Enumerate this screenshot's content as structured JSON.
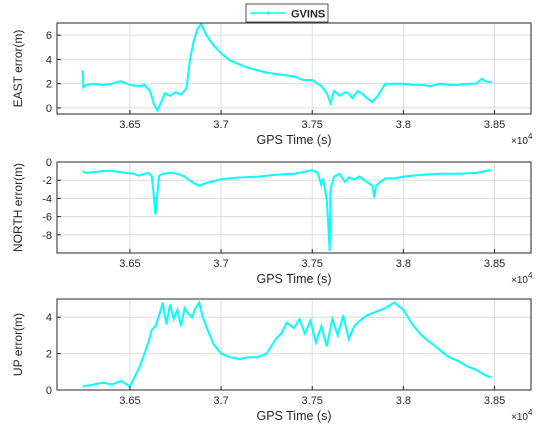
{
  "legend": {
    "label": "GVINS",
    "color": "#00ffff"
  },
  "chart_data": [
    {
      "type": "line",
      "xlabel": "GPS Time (s)",
      "ylabel": "EAST error(m)",
      "x_exponent_label": "×10",
      "x_exponent_power": "4",
      "xlim": [
        3.61,
        3.87
      ],
      "ylim": [
        -0.5,
        7
      ],
      "xticks": [
        3.65,
        3.7,
        3.75,
        3.8,
        3.85
      ],
      "xtick_labels": [
        "3.65",
        "3.7",
        "3.75",
        "3.8",
        "3.85"
      ],
      "yticks": [
        0,
        2,
        4,
        6
      ],
      "ytick_labels": [
        "0",
        "2",
        "4",
        "6"
      ],
      "series": [
        {
          "name": "GVINS",
          "color": "#00ffff",
          "x": [
            3.624,
            3.6245,
            3.626,
            3.63,
            3.635,
            3.64,
            3.645,
            3.65,
            3.655,
            3.658,
            3.661,
            3.663,
            3.665,
            3.667,
            3.669,
            3.672,
            3.675,
            3.678,
            3.681,
            3.683,
            3.685,
            3.687,
            3.689,
            3.692,
            3.695,
            3.7,
            3.705,
            3.71,
            3.715,
            3.72,
            3.725,
            3.73,
            3.735,
            3.74,
            3.745,
            3.75,
            3.753,
            3.755,
            3.758,
            3.76,
            3.762,
            3.765,
            3.768,
            3.77,
            3.772,
            3.775,
            3.778,
            3.78,
            3.783,
            3.786,
            3.79,
            3.795,
            3.8,
            3.805,
            3.81,
            3.815,
            3.82,
            3.825,
            3.83,
            3.835,
            3.84,
            3.843,
            3.845,
            3.848
          ],
          "y": [
            3.1,
            1.7,
            1.9,
            2.0,
            1.9,
            2.0,
            2.2,
            1.9,
            1.8,
            1.9,
            1.4,
            0.4,
            -0.2,
            0.4,
            1.2,
            1.0,
            1.3,
            1.1,
            1.6,
            4.0,
            5.5,
            6.5,
            6.9,
            6.0,
            5.3,
            4.5,
            3.9,
            3.6,
            3.3,
            3.1,
            2.9,
            2.8,
            2.7,
            2.6,
            2.3,
            2.3,
            2.0,
            1.8,
            1.2,
            0.4,
            1.4,
            1.0,
            1.3,
            1.2,
            0.8,
            1.4,
            1.1,
            0.8,
            0.5,
            1.0,
            2.0,
            2.0,
            2.0,
            1.9,
            1.9,
            1.8,
            2.0,
            1.9,
            1.9,
            2.0,
            2.0,
            2.4,
            2.2,
            2.1
          ]
        }
      ]
    },
    {
      "type": "line",
      "xlabel": "GPS Time (s)",
      "ylabel": "NORTH error(m)",
      "x_exponent_label": "×10",
      "x_exponent_power": "4",
      "xlim": [
        3.61,
        3.87
      ],
      "ylim": [
        -10,
        0
      ],
      "xticks": [
        3.65,
        3.7,
        3.75,
        3.8,
        3.85
      ],
      "xtick_labels": [
        "3.65",
        "3.7",
        "3.75",
        "3.8",
        "3.85"
      ],
      "yticks": [
        -8,
        -6,
        -4,
        -2,
        0
      ],
      "ytick_labels": [
        "-8",
        "-6",
        "-4",
        "-2",
        "0"
      ],
      "series": [
        {
          "name": "GVINS",
          "color": "#00ffff",
          "x": [
            3.624,
            3.626,
            3.63,
            3.635,
            3.64,
            3.645,
            3.648,
            3.652,
            3.655,
            3.658,
            3.66,
            3.662,
            3.663,
            3.664,
            3.666,
            3.668,
            3.672,
            3.676,
            3.68,
            3.684,
            3.688,
            3.692,
            3.696,
            3.7,
            3.71,
            3.72,
            3.73,
            3.74,
            3.745,
            3.75,
            3.753,
            3.755,
            3.756,
            3.758,
            3.759,
            3.7595,
            3.76,
            3.762,
            3.765,
            3.768,
            3.77,
            3.773,
            3.776,
            3.78,
            3.783,
            3.784,
            3.785,
            3.788,
            3.79,
            3.795,
            3.8,
            3.81,
            3.82,
            3.83,
            3.84,
            3.845,
            3.848
          ],
          "y": [
            -1.0,
            -1.2,
            -1.1,
            -1.0,
            -1.0,
            -1.1,
            -1.2,
            -1.3,
            -1.5,
            -1.3,
            -1.2,
            -1.6,
            -3.5,
            -5.8,
            -1.5,
            -1.3,
            -1.2,
            -1.3,
            -1.6,
            -2.2,
            -2.6,
            -2.3,
            -2.1,
            -1.9,
            -1.7,
            -1.6,
            -1.4,
            -1.3,
            -1.1,
            -0.9,
            -1.2,
            -2.5,
            -1.8,
            -4.2,
            -7.5,
            -9.8,
            -3.0,
            -1.6,
            -1.3,
            -2.2,
            -1.7,
            -1.9,
            -1.6,
            -2.2,
            -2.6,
            -3.9,
            -2.6,
            -2.1,
            -1.8,
            -1.8,
            -1.6,
            -1.4,
            -1.3,
            -1.3,
            -1.2,
            -1.0,
            -0.9
          ]
        }
      ]
    },
    {
      "type": "line",
      "xlabel": "GPS Time (s)",
      "ylabel": "UP error(m)",
      "x_exponent_label": "×10",
      "x_exponent_power": "4",
      "xlim": [
        3.61,
        3.87
      ],
      "ylim": [
        0,
        5
      ],
      "xticks": [
        3.65,
        3.7,
        3.75,
        3.8,
        3.85
      ],
      "xtick_labels": [
        "3.65",
        "3.7",
        "3.75",
        "3.8",
        "3.85"
      ],
      "yticks": [
        0,
        2,
        4
      ],
      "ytick_labels": [
        "0",
        "2",
        "4"
      ],
      "series": [
        {
          "name": "GVINS",
          "color": "#00ffff",
          "x": [
            3.624,
            3.63,
            3.635,
            3.64,
            3.645,
            3.65,
            3.655,
            3.658,
            3.66,
            3.662,
            3.664,
            3.666,
            3.668,
            3.67,
            3.672,
            3.674,
            3.676,
            3.678,
            3.68,
            3.682,
            3.684,
            3.686,
            3.688,
            3.69,
            3.693,
            3.696,
            3.7,
            3.705,
            3.71,
            3.715,
            3.72,
            3.725,
            3.73,
            3.733,
            3.736,
            3.74,
            3.743,
            3.746,
            3.749,
            3.752,
            3.755,
            3.758,
            3.761,
            3.764,
            3.767,
            3.77,
            3.773,
            3.776,
            3.78,
            3.785,
            3.79,
            3.795,
            3.8,
            3.805,
            3.81,
            3.815,
            3.82,
            3.825,
            3.83,
            3.835,
            3.84,
            3.845,
            3.848
          ],
          "y": [
            0.2,
            0.3,
            0.4,
            0.3,
            0.5,
            0.2,
            1.2,
            2.0,
            2.6,
            3.3,
            3.5,
            4.1,
            4.8,
            3.6,
            4.7,
            3.9,
            4.4,
            3.5,
            4.5,
            4.2,
            4.0,
            4.5,
            4.8,
            4.0,
            3.2,
            2.5,
            2.0,
            1.8,
            1.7,
            1.8,
            1.8,
            2.0,
            2.8,
            3.1,
            3.7,
            3.4,
            3.9,
            3.1,
            3.8,
            2.6,
            3.5,
            2.4,
            3.9,
            3.0,
            4.1,
            2.8,
            3.5,
            3.8,
            4.1,
            4.3,
            4.5,
            4.8,
            4.4,
            3.6,
            3.0,
            2.6,
            2.2,
            1.8,
            1.6,
            1.3,
            1.1,
            0.8,
            0.7
          ]
        }
      ]
    }
  ]
}
